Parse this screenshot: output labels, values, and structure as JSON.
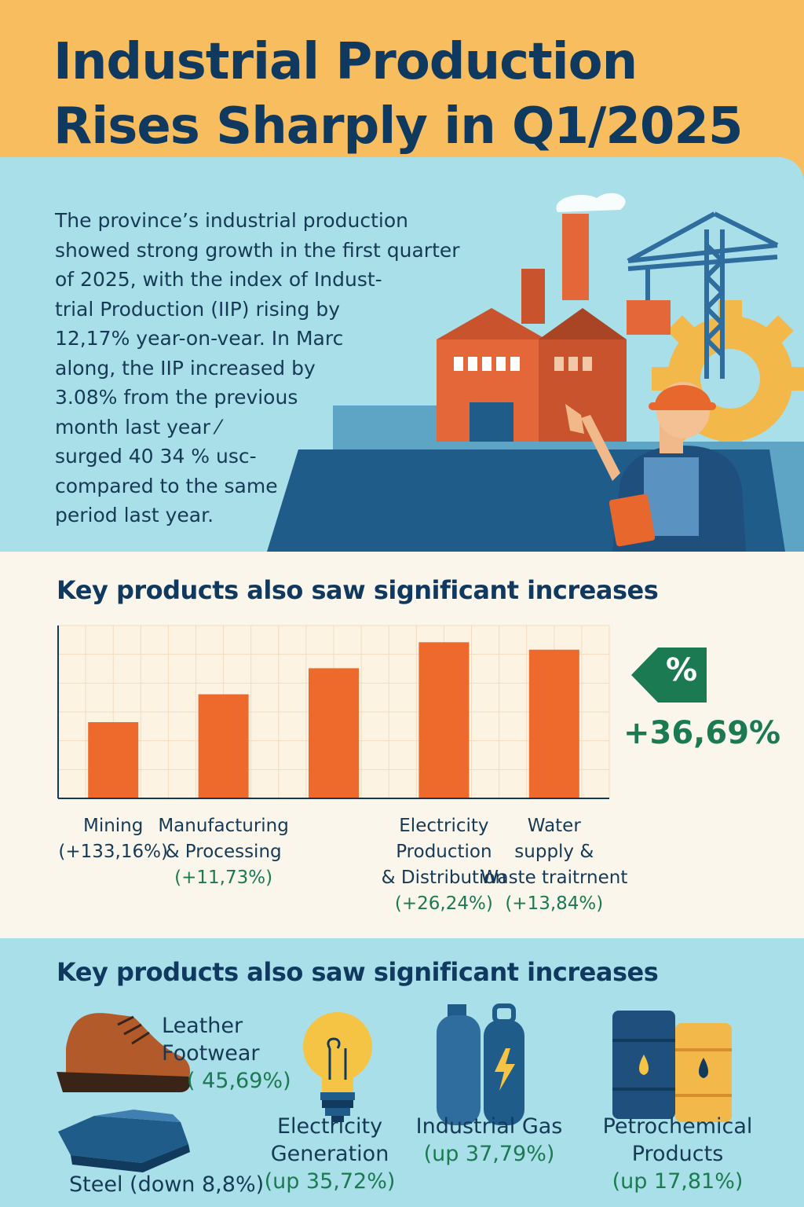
{
  "header": {
    "title_line1": "Industrial Production",
    "title_line2": "Rises Sharply in Q1/2025"
  },
  "intro": {
    "text": "The province’s industrial production\nshowed strong growth in the first quarter\nof 2025, with the index of Indust-\ntrial Production (IIP) rising by\n12,17% year-on-vear. In Marc\nalong, the IIP increased by\n3.08% from the previous\nmonth last year ⁄\nsurged 40 34 % usc-\ncompared to the same\nperiod last year."
  },
  "chart_section": {
    "heading": "Key products also saw significant increases",
    "badge_symbol": "%",
    "highlight_value": "+36,69%"
  },
  "chart_data": {
    "type": "bar",
    "title": "Key products also saw significant increases",
    "categories": [
      "Mining",
      "Manufacturing & Processing",
      "",
      "Electricity Production & Distribution",
      "Water supply & Waste traitrnent"
    ],
    "values": [
      41,
      56,
      70,
      84,
      80
    ],
    "ylim": [
      0,
      93
    ],
    "grid": true,
    "bar_color": "#ee6a2c",
    "labels": [
      {
        "name_lines": [
          "Mining"
        ],
        "pct": "(+133,16%)"
      },
      {
        "name_lines": [
          "Manufacturing",
          "& Processing"
        ],
        "pct": "(+11,73%)"
      },
      {
        "name_lines": [],
        "pct": ""
      },
      {
        "name_lines": [
          "Electricity",
          "Production",
          "& Distribution"
        ],
        "pct": "(+26,24%)"
      },
      {
        "name_lines": [
          "Water",
          "supply &",
          "Waste traitrnent"
        ],
        "pct": "(+13,84%)"
      }
    ]
  },
  "products": {
    "heading": "Key products also saw significant increases",
    "items": [
      {
        "icon": "shoe-icon",
        "name_line1": "Leather",
        "name_line2": "Footwear",
        "pct": "( 45,69%)"
      },
      {
        "icon": "steel-bars-icon",
        "name": "Steel (down 8,8%)"
      },
      {
        "icon": "lightbulb-icon",
        "name_line1": "Electricity",
        "name_line2": "Generation",
        "pct": "(up 35,72%)"
      },
      {
        "icon": "gas-cylinder-icon",
        "name_line1": "Industrial Gas",
        "pct": "(up 37,79%)"
      },
      {
        "icon": "oil-barrel-icon",
        "name_line1": "Petrochemical",
        "name_line2": "Products",
        "pct": "(up 17,81%)"
      }
    ]
  },
  "colors": {
    "header_bg": "#f7bd5e",
    "sky_bg": "#a9dfe9",
    "cream_bg": "#fbf6ec",
    "title_navy": "#10395f",
    "accent_orange": "#ee6a2c",
    "accent_green": "#1b7a52"
  }
}
